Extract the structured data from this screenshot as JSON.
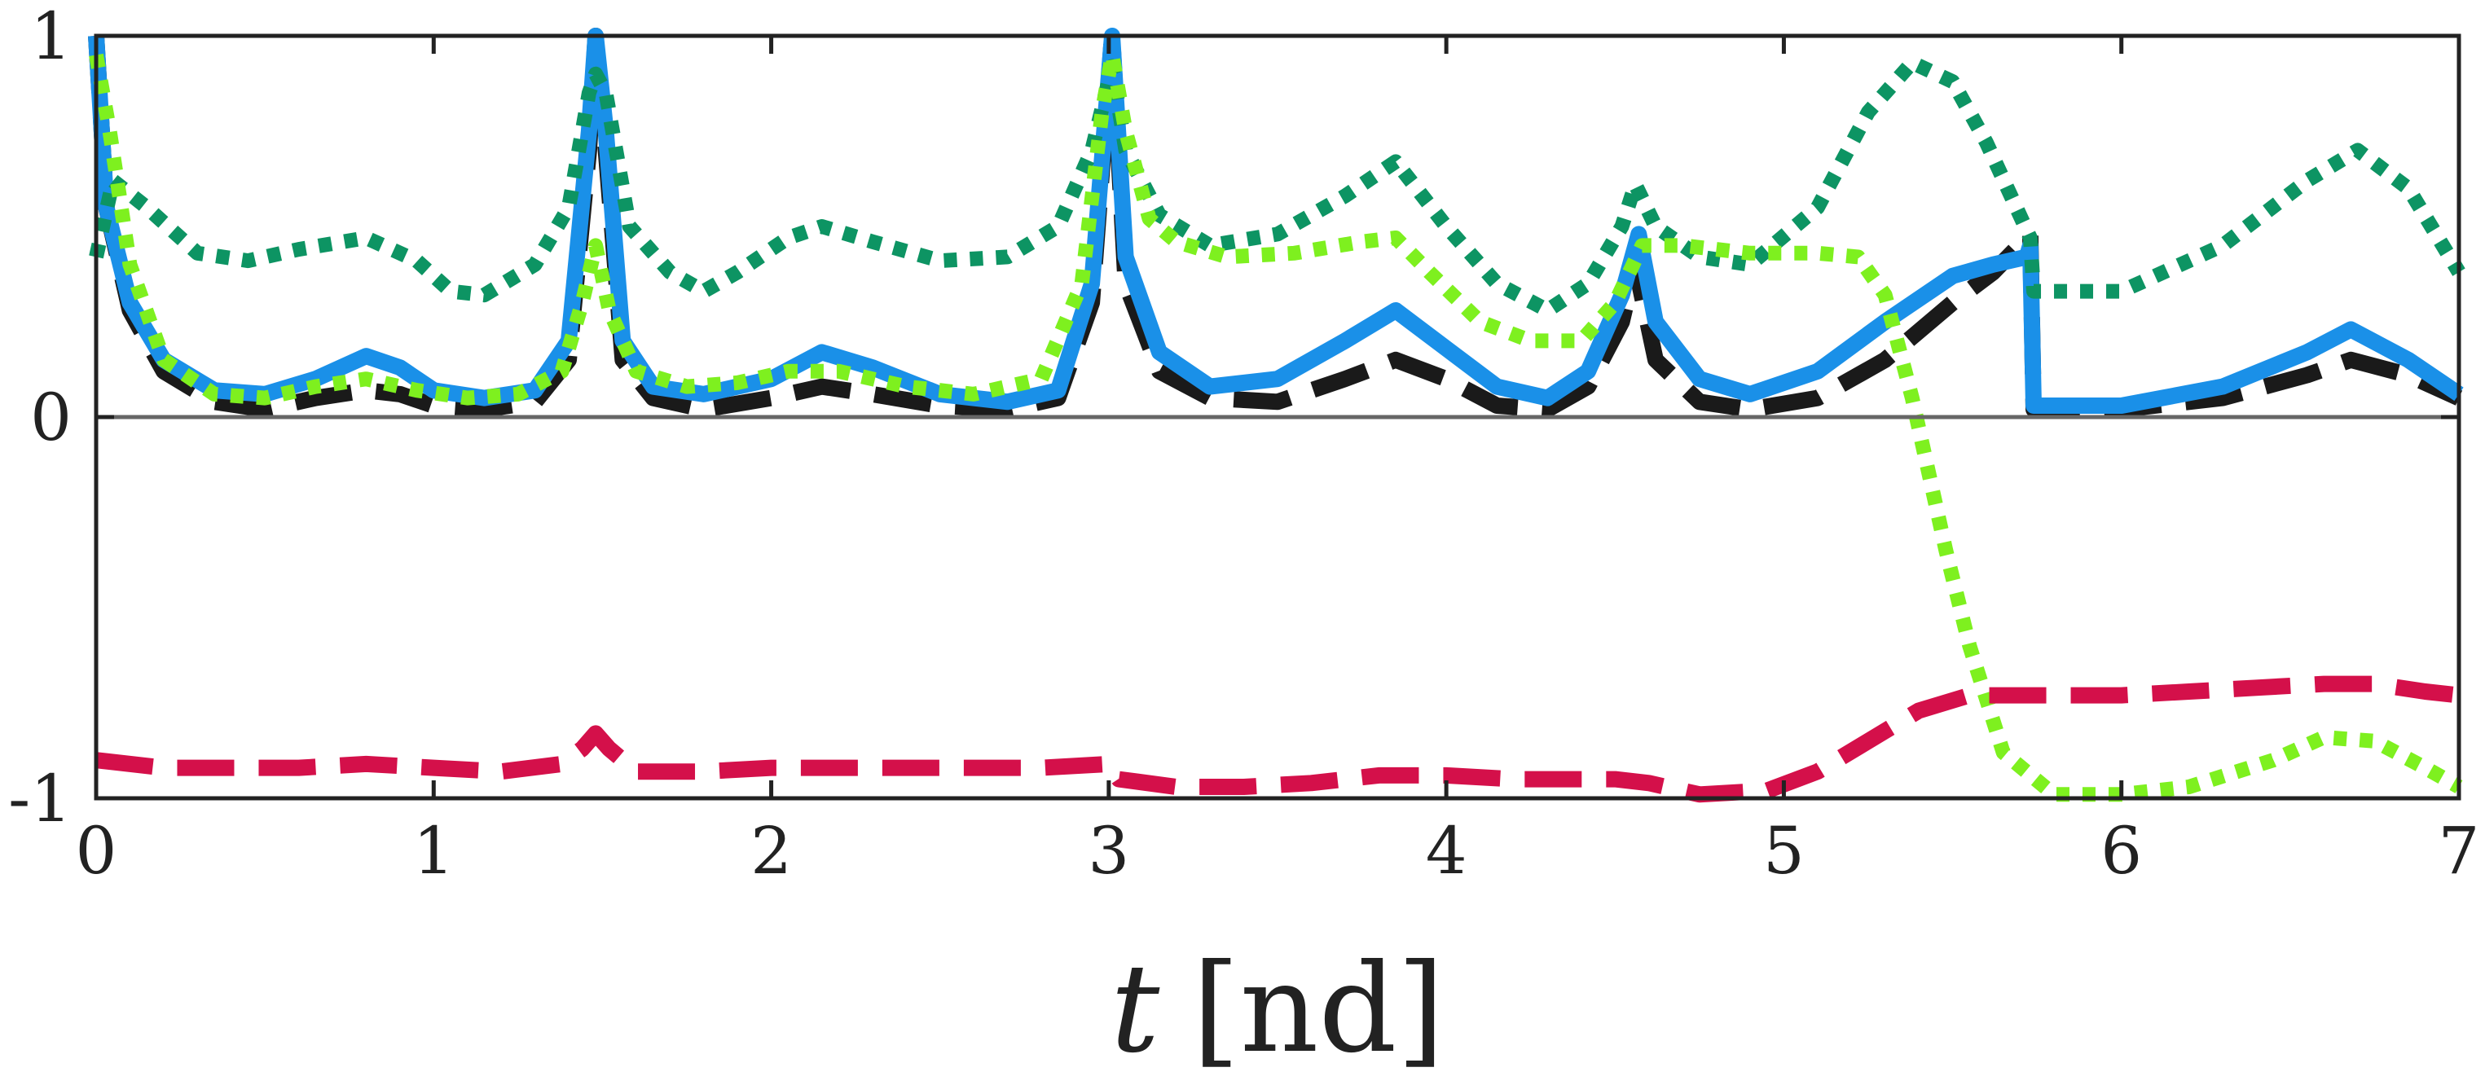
{
  "chart_data": {
    "type": "line",
    "title": "",
    "xlabel_var": "t",
    "xlabel_unit": "[nd]",
    "ylabel": "",
    "xlim": [
      0,
      7
    ],
    "ylim": [
      -1,
      1
    ],
    "x_ticks": [
      0,
      1,
      2,
      3,
      4,
      5,
      6,
      7
    ],
    "x_tick_labels": [
      "0",
      "1",
      "2",
      "3",
      "4",
      "5",
      "6",
      "7"
    ],
    "y_ticks": [
      -1,
      0,
      1
    ],
    "y_tick_labels": [
      "-1",
      "0",
      "1"
    ],
    "zero_line": true,
    "grid": false,
    "legend": "none",
    "colors": {
      "axis": "#222222",
      "zero_line": "#666666"
    },
    "series": [
      {
        "name": "black-dashed",
        "color": "#1a1a1a",
        "style": "dashed",
        "points": [
          [
            0,
            1.0
          ],
          [
            0.03,
            0.55
          ],
          [
            0.1,
            0.28
          ],
          [
            0.2,
            0.12
          ],
          [
            0.35,
            0.04
          ],
          [
            0.5,
            0.02
          ],
          [
            0.65,
            0.05
          ],
          [
            0.8,
            0.07
          ],
          [
            0.9,
            0.06
          ],
          [
            1.0,
            0.03
          ],
          [
            1.15,
            0.02
          ],
          [
            1.3,
            0.04
          ],
          [
            1.4,
            0.15
          ],
          [
            1.46,
            0.7
          ],
          [
            1.48,
            1.0
          ],
          [
            1.51,
            0.7
          ],
          [
            1.56,
            0.15
          ],
          [
            1.65,
            0.05
          ],
          [
            1.8,
            0.02
          ],
          [
            2.0,
            0.05
          ],
          [
            2.15,
            0.08
          ],
          [
            2.3,
            0.06
          ],
          [
            2.5,
            0.03
          ],
          [
            2.7,
            0.02
          ],
          [
            2.85,
            0.05
          ],
          [
            2.95,
            0.3
          ],
          [
            3.01,
            1.0
          ],
          [
            3.05,
            0.35
          ],
          [
            3.15,
            0.12
          ],
          [
            3.3,
            0.05
          ],
          [
            3.5,
            0.04
          ],
          [
            3.7,
            0.1
          ],
          [
            3.85,
            0.15
          ],
          [
            4.0,
            0.1
          ],
          [
            4.15,
            0.03
          ],
          [
            4.3,
            0.02
          ],
          [
            4.42,
            0.08
          ],
          [
            4.52,
            0.25
          ],
          [
            4.56,
            0.4
          ],
          [
            4.62,
            0.15
          ],
          [
            4.75,
            0.04
          ],
          [
            4.9,
            0.02
          ],
          [
            5.1,
            0.05
          ],
          [
            5.3,
            0.15
          ],
          [
            5.5,
            0.3
          ],
          [
            5.62,
            0.38
          ],
          [
            5.73,
            0.48
          ],
          [
            5.74,
            0.02
          ],
          [
            6.0,
            0.02
          ],
          [
            6.3,
            0.05
          ],
          [
            6.55,
            0.11
          ],
          [
            6.68,
            0.15
          ],
          [
            6.85,
            0.11
          ],
          [
            7.0,
            0.05
          ]
        ]
      },
      {
        "name": "blue-solid",
        "color": "#1a90e8",
        "style": "solid",
        "points": [
          [
            0,
            1.0
          ],
          [
            0.03,
            0.55
          ],
          [
            0.1,
            0.3
          ],
          [
            0.2,
            0.15
          ],
          [
            0.35,
            0.07
          ],
          [
            0.5,
            0.06
          ],
          [
            0.65,
            0.1
          ],
          [
            0.8,
            0.16
          ],
          [
            0.9,
            0.13
          ],
          [
            1.0,
            0.07
          ],
          [
            1.15,
            0.05
          ],
          [
            1.3,
            0.07
          ],
          [
            1.4,
            0.2
          ],
          [
            1.46,
            0.75
          ],
          [
            1.48,
            1.0
          ],
          [
            1.51,
            0.75
          ],
          [
            1.56,
            0.2
          ],
          [
            1.65,
            0.08
          ],
          [
            1.8,
            0.06
          ],
          [
            2.0,
            0.1
          ],
          [
            2.15,
            0.17
          ],
          [
            2.3,
            0.13
          ],
          [
            2.5,
            0.06
          ],
          [
            2.7,
            0.04
          ],
          [
            2.85,
            0.07
          ],
          [
            2.95,
            0.35
          ],
          [
            3.01,
            1.0
          ],
          [
            3.05,
            0.42
          ],
          [
            3.15,
            0.17
          ],
          [
            3.3,
            0.08
          ],
          [
            3.5,
            0.1
          ],
          [
            3.7,
            0.2
          ],
          [
            3.85,
            0.28
          ],
          [
            4.0,
            0.18
          ],
          [
            4.15,
            0.08
          ],
          [
            4.3,
            0.05
          ],
          [
            4.42,
            0.12
          ],
          [
            4.52,
            0.32
          ],
          [
            4.57,
            0.48
          ],
          [
            4.62,
            0.25
          ],
          [
            4.75,
            0.1
          ],
          [
            4.9,
            0.06
          ],
          [
            5.1,
            0.12
          ],
          [
            5.3,
            0.25
          ],
          [
            5.5,
            0.37
          ],
          [
            5.62,
            0.4
          ],
          [
            5.72,
            0.42
          ],
          [
            5.73,
            0.45
          ],
          [
            5.74,
            0.03
          ],
          [
            6.0,
            0.03
          ],
          [
            6.3,
            0.08
          ],
          [
            6.55,
            0.17
          ],
          [
            6.68,
            0.23
          ],
          [
            6.85,
            0.15
          ],
          [
            7.0,
            0.06
          ]
        ]
      },
      {
        "name": "dark-green-dotted",
        "color": "#0d9463",
        "style": "dotted",
        "points": [
          [
            0,
            0.42
          ],
          [
            0.05,
            0.62
          ],
          [
            0.15,
            0.55
          ],
          [
            0.3,
            0.43
          ],
          [
            0.45,
            0.41
          ],
          [
            0.6,
            0.44
          ],
          [
            0.8,
            0.47
          ],
          [
            0.95,
            0.41
          ],
          [
            1.05,
            0.33
          ],
          [
            1.15,
            0.32
          ],
          [
            1.3,
            0.4
          ],
          [
            1.4,
            0.55
          ],
          [
            1.46,
            0.85
          ],
          [
            1.48,
            0.9
          ],
          [
            1.51,
            0.85
          ],
          [
            1.58,
            0.5
          ],
          [
            1.7,
            0.38
          ],
          [
            1.8,
            0.33
          ],
          [
            1.9,
            0.38
          ],
          [
            2.05,
            0.47
          ],
          [
            2.15,
            0.5
          ],
          [
            2.3,
            0.46
          ],
          [
            2.5,
            0.41
          ],
          [
            2.7,
            0.42
          ],
          [
            2.85,
            0.5
          ],
          [
            2.95,
            0.7
          ],
          [
            3.01,
            0.92
          ],
          [
            3.05,
            0.7
          ],
          [
            3.15,
            0.53
          ],
          [
            3.3,
            0.45
          ],
          [
            3.5,
            0.48
          ],
          [
            3.7,
            0.58
          ],
          [
            3.85,
            0.67
          ],
          [
            4.0,
            0.5
          ],
          [
            4.15,
            0.35
          ],
          [
            4.3,
            0.28
          ],
          [
            4.42,
            0.35
          ],
          [
            4.52,
            0.5
          ],
          [
            4.56,
            0.61
          ],
          [
            4.62,
            0.5
          ],
          [
            4.75,
            0.42
          ],
          [
            4.9,
            0.4
          ],
          [
            5.1,
            0.55
          ],
          [
            5.25,
            0.8
          ],
          [
            5.38,
            0.93
          ],
          [
            5.5,
            0.88
          ],
          [
            5.6,
            0.72
          ],
          [
            5.73,
            0.47
          ],
          [
            5.74,
            0.33
          ],
          [
            6.0,
            0.33
          ],
          [
            6.3,
            0.45
          ],
          [
            6.55,
            0.62
          ],
          [
            6.7,
            0.7
          ],
          [
            6.85,
            0.6
          ],
          [
            7.0,
            0.38
          ]
        ]
      },
      {
        "name": "light-green-dotted",
        "color": "#7ef01f",
        "style": "dotted",
        "points": [
          [
            0,
            0.95
          ],
          [
            0.04,
            0.75
          ],
          [
            0.1,
            0.4
          ],
          [
            0.2,
            0.15
          ],
          [
            0.35,
            0.06
          ],
          [
            0.5,
            0.05
          ],
          [
            0.65,
            0.08
          ],
          [
            0.8,
            0.1
          ],
          [
            0.95,
            0.07
          ],
          [
            1.1,
            0.05
          ],
          [
            1.25,
            0.06
          ],
          [
            1.38,
            0.12
          ],
          [
            1.44,
            0.3
          ],
          [
            1.48,
            0.45
          ],
          [
            1.52,
            0.28
          ],
          [
            1.6,
            0.12
          ],
          [
            1.75,
            0.08
          ],
          [
            1.9,
            0.09
          ],
          [
            2.05,
            0.12
          ],
          [
            2.2,
            0.12
          ],
          [
            2.4,
            0.08
          ],
          [
            2.6,
            0.06
          ],
          [
            2.8,
            0.1
          ],
          [
            2.92,
            0.35
          ],
          [
            2.98,
            0.8
          ],
          [
            3.01,
            0.95
          ],
          [
            3.05,
            0.75
          ],
          [
            3.12,
            0.52
          ],
          [
            3.2,
            0.46
          ],
          [
            3.35,
            0.42
          ],
          [
            3.55,
            0.43
          ],
          [
            3.75,
            0.46
          ],
          [
            3.85,
            0.47
          ],
          [
            3.95,
            0.38
          ],
          [
            4.1,
            0.25
          ],
          [
            4.25,
            0.2
          ],
          [
            4.4,
            0.2
          ],
          [
            4.5,
            0.3
          ],
          [
            4.58,
            0.45
          ],
          [
            4.7,
            0.45
          ],
          [
            4.9,
            0.43
          ],
          [
            5.1,
            0.43
          ],
          [
            5.22,
            0.42
          ],
          [
            5.3,
            0.32
          ],
          [
            5.38,
            0.05
          ],
          [
            5.48,
            -0.35
          ],
          [
            5.55,
            -0.6
          ],
          [
            5.65,
            -0.88
          ],
          [
            5.8,
            -0.99
          ],
          [
            6.0,
            -0.99
          ],
          [
            6.2,
            -0.97
          ],
          [
            6.45,
            -0.9
          ],
          [
            6.6,
            -0.84
          ],
          [
            6.75,
            -0.85
          ],
          [
            6.9,
            -0.92
          ],
          [
            7.0,
            -0.97
          ]
        ]
      },
      {
        "name": "crimson-dashed",
        "color": "#d4104a",
        "style": "dashed",
        "points": [
          [
            0,
            -0.9
          ],
          [
            0.2,
            -0.92
          ],
          [
            0.4,
            -0.92
          ],
          [
            0.6,
            -0.92
          ],
          [
            0.8,
            -0.91
          ],
          [
            1.0,
            -0.92
          ],
          [
            1.2,
            -0.93
          ],
          [
            1.38,
            -0.91
          ],
          [
            1.44,
            -0.87
          ],
          [
            1.48,
            -0.83
          ],
          [
            1.52,
            -0.87
          ],
          [
            1.6,
            -0.93
          ],
          [
            1.8,
            -0.93
          ],
          [
            2.0,
            -0.92
          ],
          [
            2.2,
            -0.92
          ],
          [
            2.4,
            -0.92
          ],
          [
            2.6,
            -0.92
          ],
          [
            2.8,
            -0.92
          ],
          [
            3.0,
            -0.91
          ],
          [
            3.03,
            -0.95
          ],
          [
            3.2,
            -0.97
          ],
          [
            3.4,
            -0.97
          ],
          [
            3.6,
            -0.96
          ],
          [
            3.8,
            -0.94
          ],
          [
            4.0,
            -0.94
          ],
          [
            4.2,
            -0.95
          ],
          [
            4.4,
            -0.95
          ],
          [
            4.5,
            -0.95
          ],
          [
            4.6,
            -0.96
          ],
          [
            4.75,
            -0.99
          ],
          [
            4.95,
            -0.98
          ],
          [
            5.1,
            -0.93
          ],
          [
            5.25,
            -0.85
          ],
          [
            5.4,
            -0.77
          ],
          [
            5.55,
            -0.73
          ],
          [
            5.75,
            -0.73
          ],
          [
            6.0,
            -0.73
          ],
          [
            6.2,
            -0.72
          ],
          [
            6.4,
            -0.71
          ],
          [
            6.6,
            -0.7
          ],
          [
            6.75,
            -0.7
          ],
          [
            6.9,
            -0.72
          ],
          [
            7.0,
            -0.73
          ]
        ]
      }
    ]
  }
}
